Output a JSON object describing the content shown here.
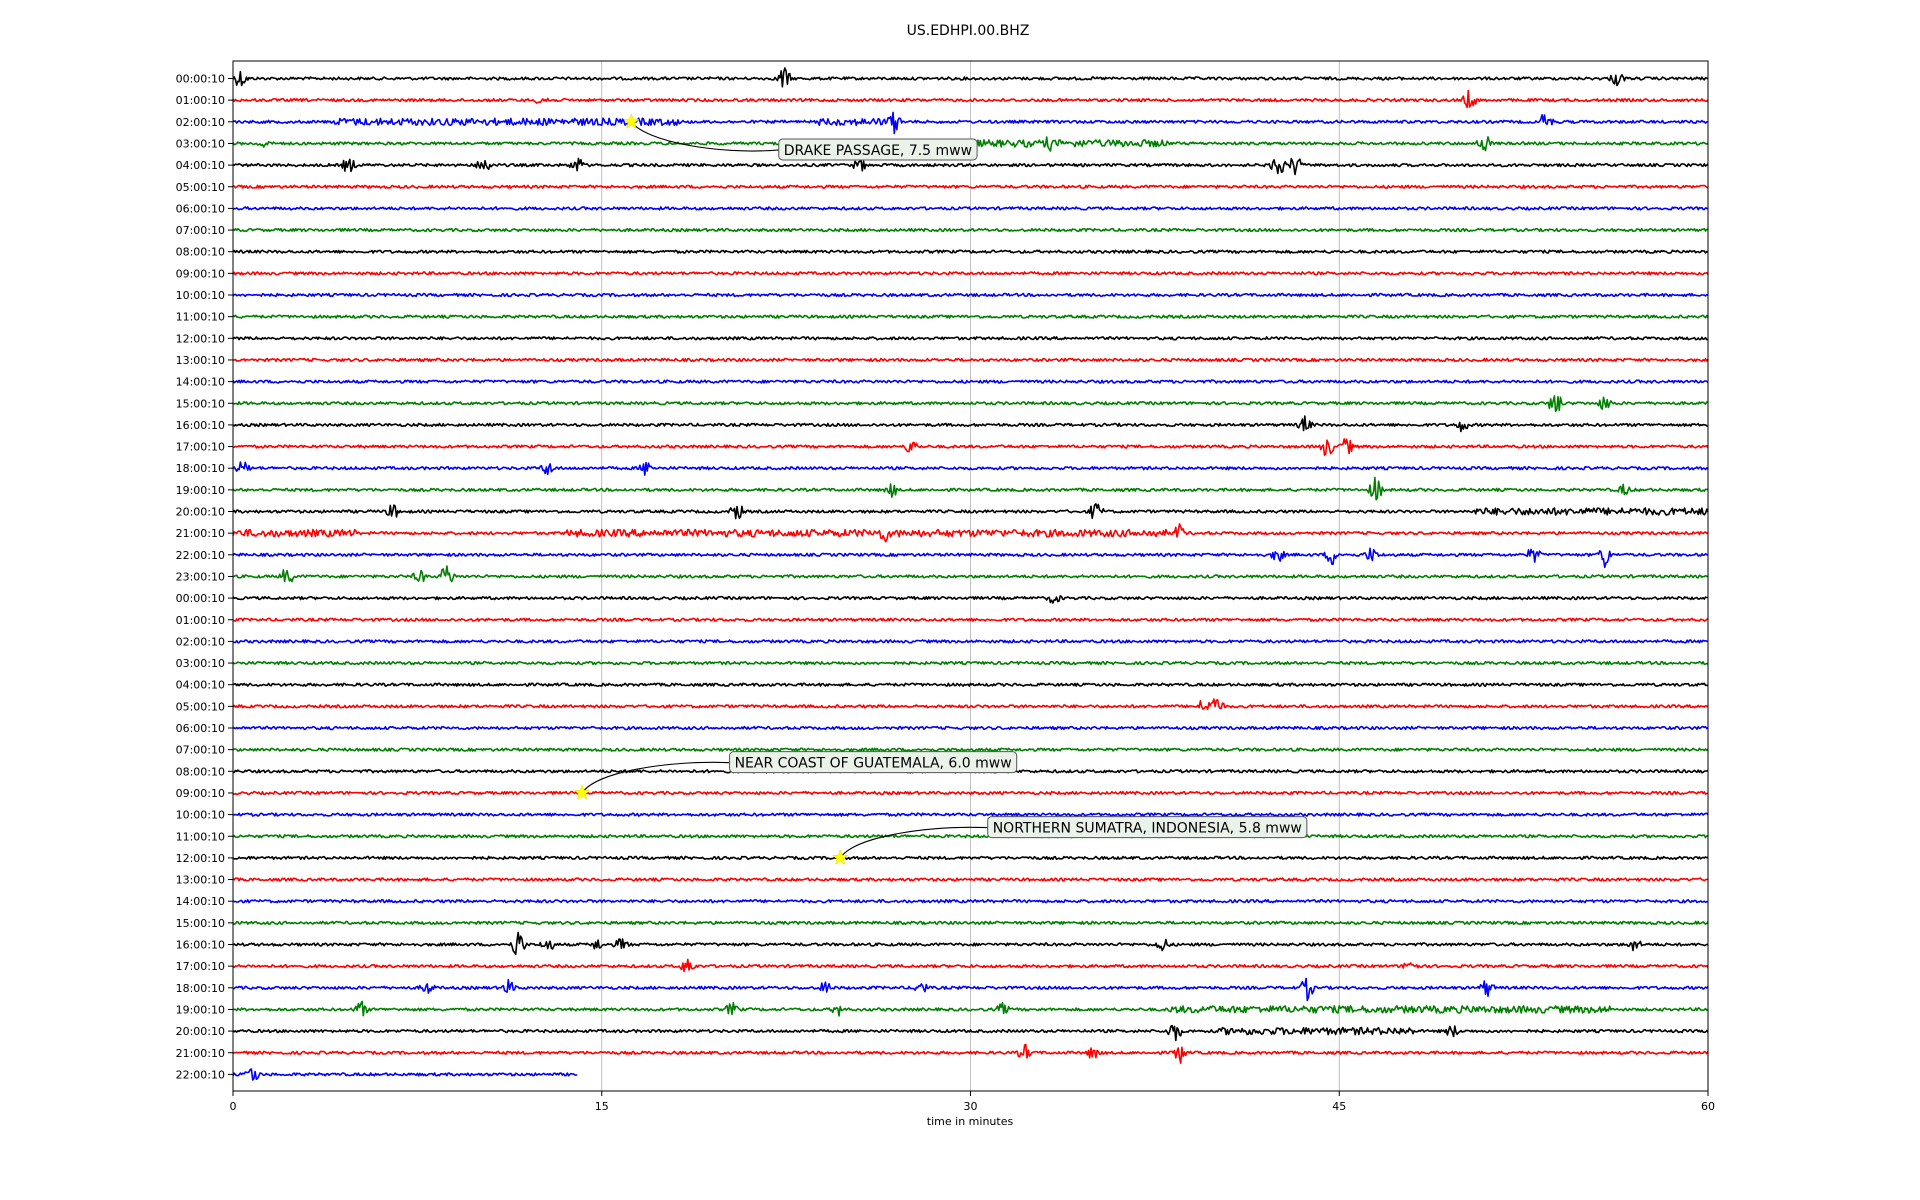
{
  "chart_data": {
    "type": "line",
    "title": "US.EDHPI.00.BHZ",
    "xlabel": "time in minutes",
    "ylabel": "",
    "xlim": [
      0,
      60
    ],
    "xticks": [
      "0",
      "15",
      "30",
      "45",
      "60"
    ],
    "grid": "vertical at x ticks",
    "trace_colors": [
      "#000000",
      "#ff0000",
      "#0000ff",
      "#008000"
    ],
    "rows": [
      "00:00:10",
      "01:00:10",
      "02:00:10",
      "03:00:10",
      "04:00:10",
      "05:00:10",
      "06:00:10",
      "07:00:10",
      "08:00:10",
      "09:00:10",
      "10:00:10",
      "11:00:10",
      "12:00:10",
      "13:00:10",
      "14:00:10",
      "15:00:10",
      "16:00:10",
      "17:00:10",
      "18:00:10",
      "19:00:10",
      "20:00:10",
      "21:00:10",
      "22:00:10",
      "23:00:10",
      "00:00:10",
      "01:00:10",
      "02:00:10",
      "03:00:10",
      "04:00:10",
      "05:00:10",
      "06:00:10",
      "07:00:10",
      "08:00:10",
      "09:00:10",
      "10:00:10",
      "11:00:10",
      "12:00:10",
      "13:00:10",
      "14:00:10",
      "15:00:10",
      "16:00:10",
      "17:00:10",
      "18:00:10",
      "19:00:10",
      "20:00:10",
      "21:00:10",
      "22:00:10"
    ],
    "last_row_end_minute": 14,
    "noisy_segments": [
      {
        "row": 2,
        "from": 4,
        "to": 18.3
      },
      {
        "row": 2,
        "from": 23.8,
        "to": 27
      },
      {
        "row": 3,
        "from": 30,
        "to": 38
      },
      {
        "row": 20,
        "from": 50.5,
        "to": 60
      },
      {
        "row": 21,
        "from": 0,
        "to": 5
      },
      {
        "row": 21,
        "from": 13.5,
        "to": 38
      },
      {
        "row": 43,
        "from": 38,
        "to": 56
      },
      {
        "row": 44,
        "from": 40,
        "to": 48
      }
    ],
    "spikes": [
      {
        "row": 0,
        "x": 0.3,
        "amp": 1.0
      },
      {
        "row": 0,
        "x": 22.4,
        "amp": 1.4
      },
      {
        "row": 0,
        "x": 56.3,
        "amp": 0.8
      },
      {
        "row": 1,
        "x": 50.3,
        "amp": 1.1
      },
      {
        "row": 1,
        "x": 12.6,
        "amp": 0.6
      },
      {
        "row": 2,
        "x": 26.9,
        "amp": 1.2
      },
      {
        "row": 2,
        "x": 53.4,
        "amp": 1.1
      },
      {
        "row": 3,
        "x": 1.2,
        "amp": 0.4
      },
      {
        "row": 3,
        "x": 33.2,
        "amp": 0.8
      },
      {
        "row": 3,
        "x": 50.9,
        "amp": 1.1
      },
      {
        "row": 4,
        "x": 4.7,
        "amp": 0.9
      },
      {
        "row": 4,
        "x": 10.2,
        "amp": 1.1
      },
      {
        "row": 4,
        "x": 14,
        "amp": 0.9
      },
      {
        "row": 4,
        "x": 25.5,
        "amp": 0.7
      },
      {
        "row": 4,
        "x": 42.5,
        "amp": 1.6
      },
      {
        "row": 4,
        "x": 43.2,
        "amp": 1.2
      },
      {
        "row": 15,
        "x": 53.8,
        "amp": 1.5
      },
      {
        "row": 15,
        "x": 55.8,
        "amp": 0.8
      },
      {
        "row": 16,
        "x": 43.6,
        "amp": 0.9
      },
      {
        "row": 16,
        "x": 50,
        "amp": 0.7
      },
      {
        "row": 17,
        "x": 27.6,
        "amp": 0.9
      },
      {
        "row": 17,
        "x": 44.5,
        "amp": 1.2
      },
      {
        "row": 17,
        "x": 45.3,
        "amp": 1.0
      },
      {
        "row": 18,
        "x": 0.4,
        "amp": 0.8
      },
      {
        "row": 18,
        "x": 12.8,
        "amp": 0.8
      },
      {
        "row": 18,
        "x": 16.8,
        "amp": 0.8
      },
      {
        "row": 19,
        "x": 26.8,
        "amp": 0.7
      },
      {
        "row": 19,
        "x": 46.5,
        "amp": 1.5
      },
      {
        "row": 19,
        "x": 56.6,
        "amp": 0.6
      },
      {
        "row": 20,
        "x": 6.5,
        "amp": 0.8
      },
      {
        "row": 20,
        "x": 20.5,
        "amp": 1.0
      },
      {
        "row": 20,
        "x": 35.1,
        "amp": 1.1
      },
      {
        "row": 21,
        "x": 26.5,
        "amp": 1.0
      },
      {
        "row": 21,
        "x": 38.5,
        "amp": 0.9
      },
      {
        "row": 22,
        "x": 42.5,
        "amp": 0.8
      },
      {
        "row": 22,
        "x": 44.7,
        "amp": 1.1
      },
      {
        "row": 22,
        "x": 46.3,
        "amp": 0.8
      },
      {
        "row": 22,
        "x": 52.9,
        "amp": 0.9
      },
      {
        "row": 22,
        "x": 55.8,
        "amp": 1.4
      },
      {
        "row": 23,
        "x": 2.2,
        "amp": 1.0
      },
      {
        "row": 23,
        "x": 7.6,
        "amp": 0.7
      },
      {
        "row": 23,
        "x": 8.7,
        "amp": 1.4
      },
      {
        "row": 24,
        "x": 33.4,
        "amp": 0.6
      },
      {
        "row": 29,
        "x": 39.5,
        "amp": 0.9
      },
      {
        "row": 29,
        "x": 40,
        "amp": 1.3
      },
      {
        "row": 40,
        "x": 11.6,
        "amp": 1.8
      },
      {
        "row": 40,
        "x": 12.8,
        "amp": 0.8
      },
      {
        "row": 40,
        "x": 14.8,
        "amp": 0.6
      },
      {
        "row": 40,
        "x": 15.8,
        "amp": 0.7
      },
      {
        "row": 40,
        "x": 37.8,
        "amp": 0.8
      },
      {
        "row": 40,
        "x": 57,
        "amp": 0.7
      },
      {
        "row": 41,
        "x": 18.5,
        "amp": 1.0
      },
      {
        "row": 41,
        "x": 47.9,
        "amp": 0.9
      },
      {
        "row": 42,
        "x": 7.9,
        "amp": 0.7
      },
      {
        "row": 42,
        "x": 11.2,
        "amp": 0.8
      },
      {
        "row": 42,
        "x": 24.1,
        "amp": 0.7
      },
      {
        "row": 42,
        "x": 28,
        "amp": 0.7
      },
      {
        "row": 42,
        "x": 43.7,
        "amp": 1.3
      },
      {
        "row": 42,
        "x": 51,
        "amp": 1.0
      },
      {
        "row": 43,
        "x": 5.2,
        "amp": 0.9
      },
      {
        "row": 43,
        "x": 20.3,
        "amp": 0.7
      },
      {
        "row": 43,
        "x": 24.6,
        "amp": 0.7
      },
      {
        "row": 43,
        "x": 31.3,
        "amp": 0.6
      },
      {
        "row": 44,
        "x": 38.3,
        "amp": 1.3
      },
      {
        "row": 44,
        "x": 49.6,
        "amp": 0.7
      },
      {
        "row": 45,
        "x": 32.2,
        "amp": 0.9
      },
      {
        "row": 45,
        "x": 35,
        "amp": 0.7
      },
      {
        "row": 45,
        "x": 38.5,
        "amp": 1.2
      },
      {
        "row": 46,
        "x": 0.8,
        "amp": 1.0
      }
    ],
    "events": [
      {
        "label": "DRAKE PASSAGE, 7.5 mww",
        "row": 2,
        "x": 16.2,
        "label_x": 22.2,
        "label_row": 3.3
      },
      {
        "label": "NEAR COAST OF GUATEMALA, 6.0 mww",
        "row": 33,
        "x": 14.2,
        "label_x": 20.2,
        "label_row": 31.6
      },
      {
        "label": "NORTHERN SUMATRA, INDONESIA, 5.8 mww",
        "row": 36,
        "x": 24.7,
        "label_x": 30.7,
        "label_row": 34.6
      }
    ]
  }
}
